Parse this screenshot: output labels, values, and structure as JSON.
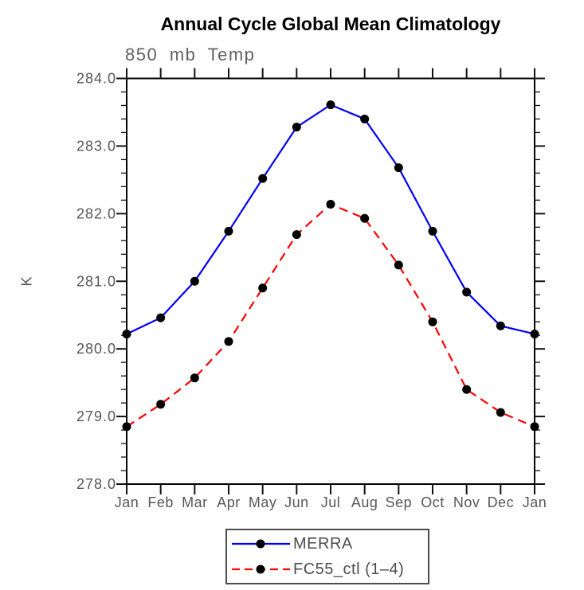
{
  "chart_data": {
    "type": "line",
    "title": "Annual Cycle Global Mean Climatology",
    "subtitle": "850 mb Temp",
    "ylabel": "K",
    "xlabel": "",
    "categories": [
      "Jan",
      "Feb",
      "Mar",
      "Apr",
      "May",
      "Jun",
      "Jul",
      "Aug",
      "Sep",
      "Oct",
      "Nov",
      "Dec",
      "Jan"
    ],
    "ylim": [
      278.0,
      284.0
    ],
    "y_major_step": 1.0,
    "y_minor_step": 0.2,
    "y_tick_labels": [
      "278.0",
      "279.0",
      "280.0",
      "281.0",
      "282.0",
      "283.0",
      "284.0"
    ],
    "grid": false,
    "legend_position": "bottom-center",
    "series": [
      {
        "name": "MERRA",
        "color": "#0000ff",
        "line_style": "solid",
        "marker": "filled-circle",
        "marker_color": "#000000",
        "values": [
          280.22,
          280.46,
          281.0,
          281.74,
          282.52,
          283.28,
          283.61,
          283.4,
          282.68,
          281.74,
          280.84,
          280.34,
          280.22
        ]
      },
      {
        "name": "FC55_ctl (1–4)",
        "color": "#ff0000",
        "line_style": "dashed",
        "marker": "filled-circle",
        "marker_color": "#000000",
        "values": [
          278.85,
          279.18,
          279.57,
          280.11,
          280.9,
          281.69,
          282.14,
          281.93,
          281.24,
          280.4,
          279.4,
          279.06,
          278.85
        ]
      }
    ]
  }
}
